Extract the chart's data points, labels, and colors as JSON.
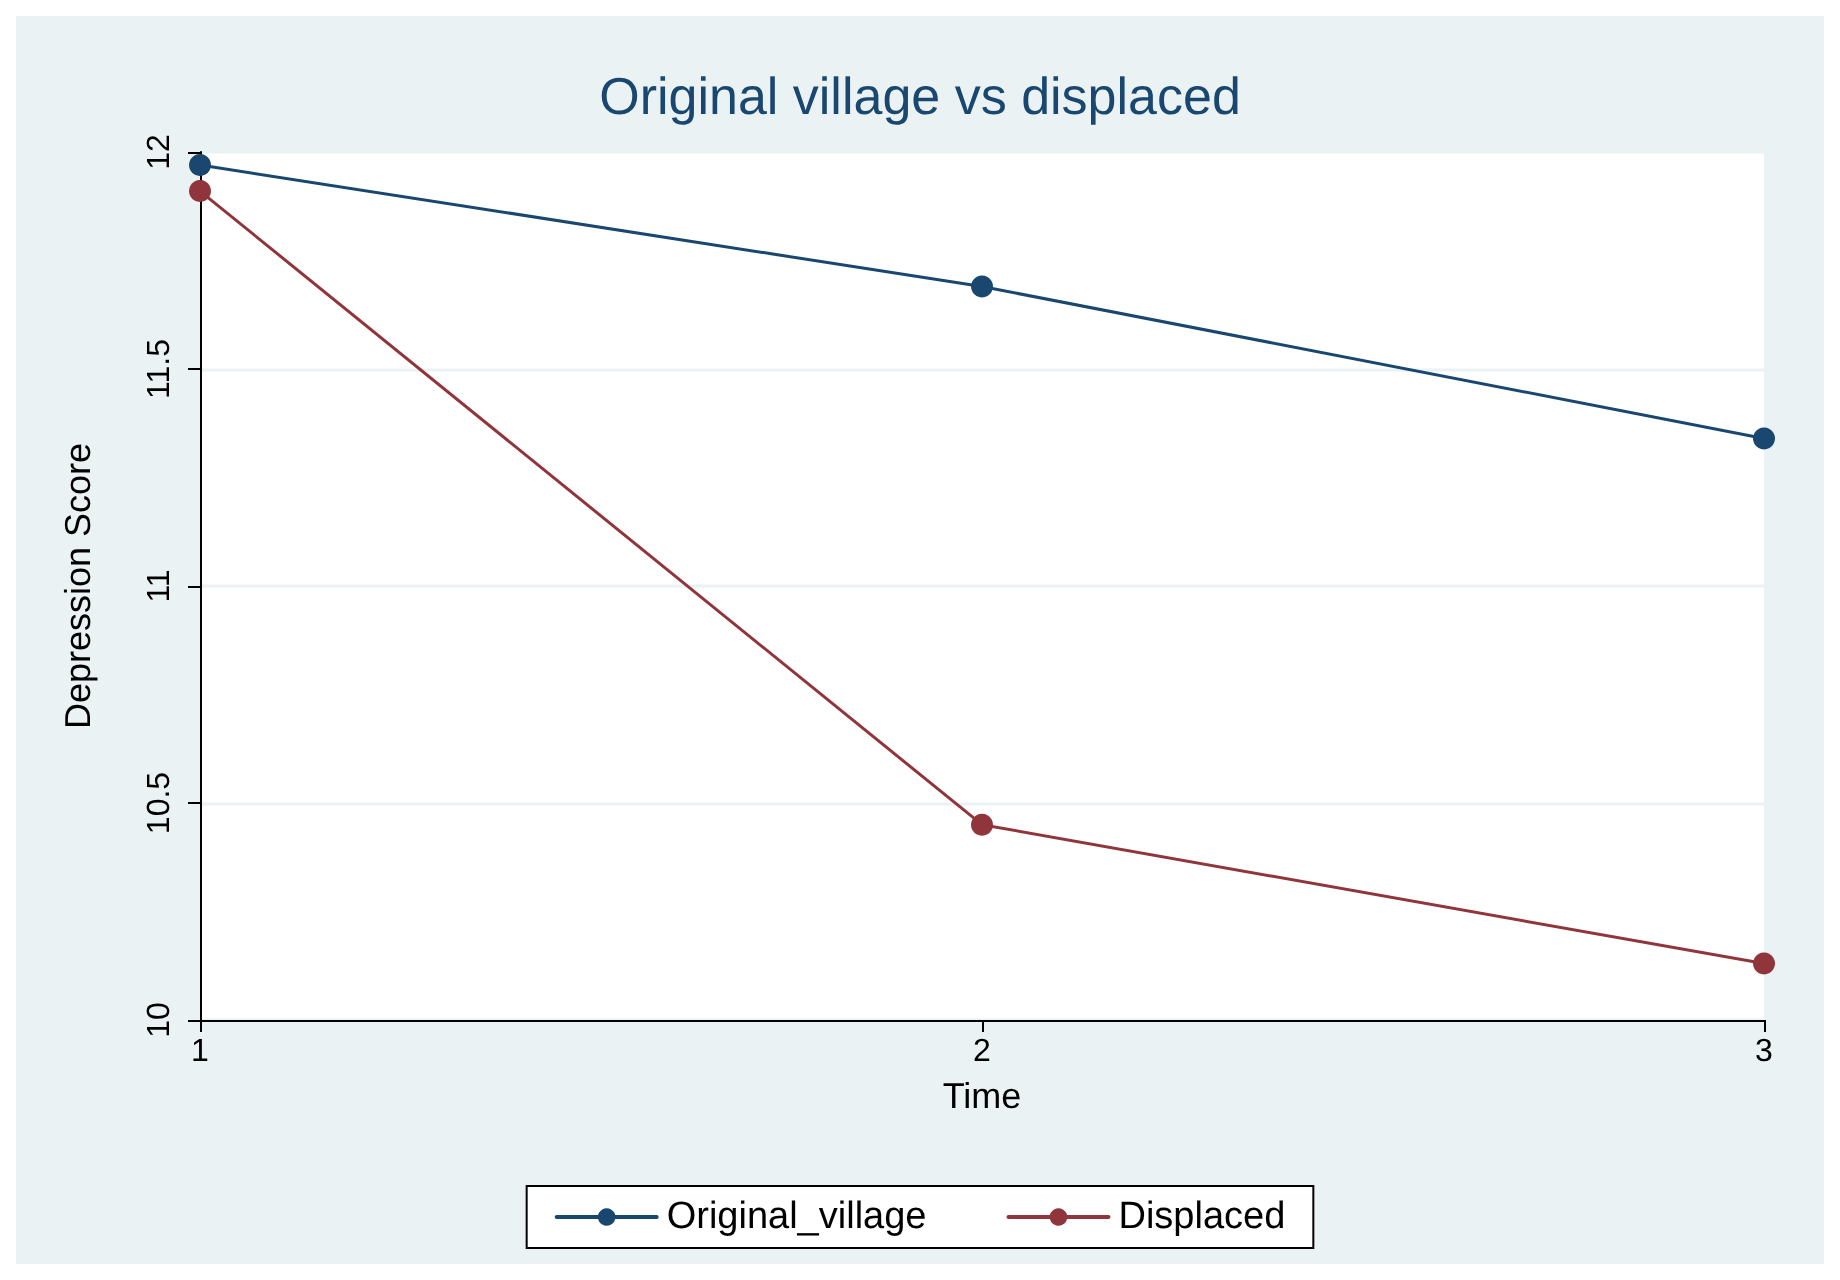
{
  "chart_data": {
    "type": "line",
    "title": "Original village vs displaced",
    "xlabel": "Time",
    "ylabel": "Depression Score",
    "x": [
      1,
      2,
      3
    ],
    "series": [
      {
        "name": "Original_village",
        "color": "#1a476f",
        "values": [
          11.97,
          11.69,
          11.34
        ]
      },
      {
        "name": "Displaced",
        "color": "#90353b",
        "values": [
          11.91,
          10.45,
          10.13
        ]
      }
    ],
    "xlim": [
      1,
      3
    ],
    "xticks": [
      1,
      2,
      3
    ],
    "ylim": [
      10,
      12
    ],
    "yticks": [
      10,
      10.5,
      11,
      11.5,
      12
    ],
    "grid": "y",
    "legend": "bottom",
    "marker": "circle",
    "line_style": "solid"
  }
}
